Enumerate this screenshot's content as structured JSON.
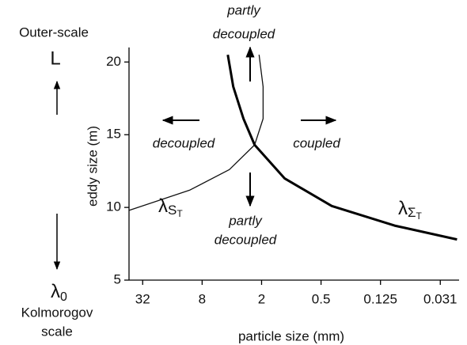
{
  "chart_data": {
    "type": "line",
    "xlabel": "particle size (mm)",
    "ylabel": "eddy size (m)",
    "xscale": "log",
    "xlim": [
      44,
      0.02
    ],
    "xticks": [
      32,
      8,
      2,
      0.5,
      0.125,
      0.031
    ],
    "ylim": [
      5,
      21
    ],
    "yticks": [
      5,
      10,
      15,
      20
    ],
    "grid": false,
    "series": [
      {
        "name": "λ",
        "subscript": "S",
        "sub_subscript": "T",
        "color": "#111111",
        "width": 1.3,
        "x": [
          2.12,
          1.93,
          1.93,
          2.35,
          4.24,
          10.6,
          43.7
        ],
        "values": [
          20.5,
          18.3,
          16.1,
          14.3,
          12.6,
          11.2,
          9.8
        ]
      },
      {
        "name": "λ",
        "subscript": "Σ",
        "sub_subscript": "T",
        "color": "#000000",
        "width": 3,
        "x": [
          4.4,
          3.87,
          3.05,
          2.35,
          1.17,
          0.39,
          0.09,
          0.021
        ],
        "values": [
          20.5,
          18.3,
          16.1,
          14.3,
          12.0,
          10.1,
          8.75,
          7.8
        ]
      }
    ],
    "annotations": [
      {
        "lines": [
          "partly",
          "decoupled"
        ]
      },
      {
        "lines": [
          "decoupled"
        ]
      },
      {
        "lines": [
          "coupled"
        ]
      },
      {
        "lines": [
          "partly",
          "decoupled"
        ]
      }
    ],
    "side_labels": {
      "top": "Outer-scale",
      "top_symbol": "L",
      "bottom_symbol": "λ",
      "bottom_symbol_subscript": "0",
      "bottom": [
        "Kolmorogov",
        "scale"
      ]
    }
  }
}
